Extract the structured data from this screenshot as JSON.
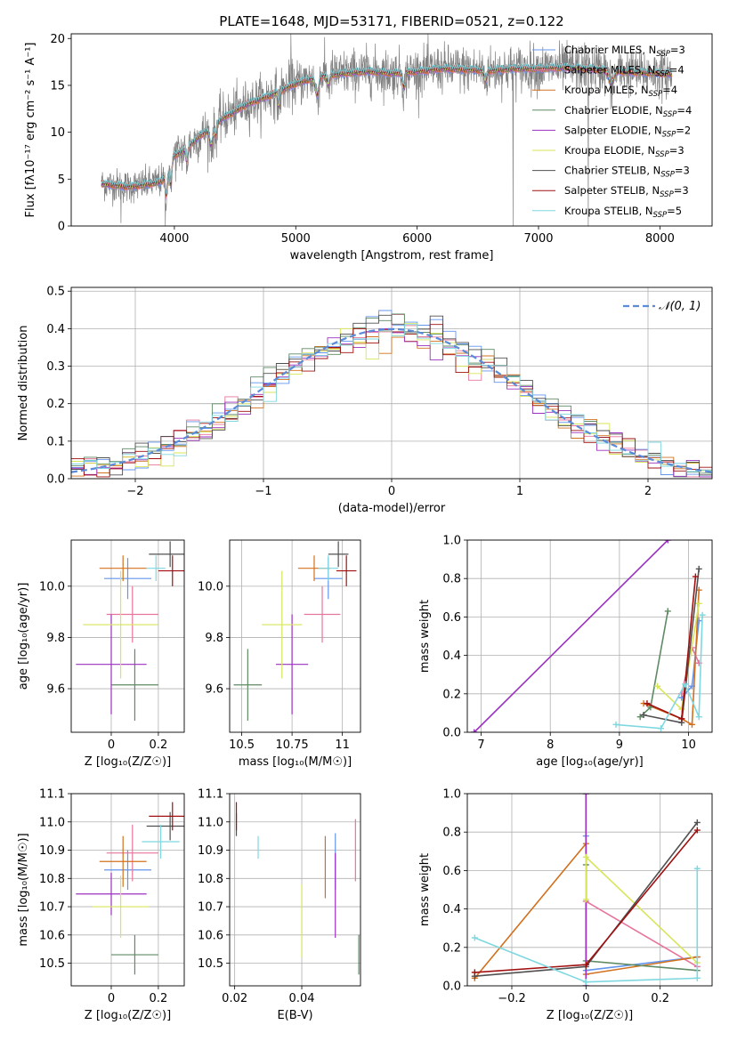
{
  "figure": {
    "title": "PLATE=1648, MJD=53171, FIBERID=0521, z=0.122"
  },
  "colors": {
    "data": "#808080",
    "models": [
      "#6495ED",
      "#E7759B",
      "#D2701E",
      "#5E8A64",
      "#9B30C0",
      "#D8E55A",
      "#505050",
      "#A01010",
      "#7FD8E0"
    ],
    "gauss": "#5B8BD8"
  },
  "chart_data": [
    {
      "id": "spectrum",
      "type": "line",
      "title": "PLATE=1648, MJD=53171, FIBERID=0521, z=0.122",
      "xlabel": "wavelength [Angstrom, rest frame]",
      "ylabel": "Flux [fλ10⁻¹⁷ erg cm⁻² s⁻¹ A⁻¹]",
      "xlim": [
        3150,
        8430
      ],
      "ylim": [
        0,
        20.5
      ],
      "xticks": [
        4000,
        5000,
        6000,
        7000,
        8000
      ],
      "yticks": [
        0,
        5,
        10,
        15,
        20
      ],
      "legend": "right",
      "continuum": {
        "x": [
          3400,
          3500,
          3600,
          3700,
          3800,
          3900,
          4000,
          4100,
          4200,
          4300,
          4400,
          4600,
          4800,
          5000,
          5200,
          5400,
          5600,
          5800,
          6000,
          6200,
          6400,
          6600,
          6800,
          7000,
          7200,
          7400,
          7600,
          7800,
          8000,
          8100
        ],
        "y": [
          4.5,
          4.4,
          4.2,
          4.3,
          4.5,
          4.8,
          7.5,
          8.3,
          9.5,
          10.5,
          11.5,
          13.0,
          14.0,
          15.2,
          16.0,
          16.3,
          16.5,
          16.3,
          16.5,
          16.8,
          16.7,
          16.6,
          16.8,
          16.8,
          16.9,
          16.8,
          16.6,
          16.4,
          16.3,
          16.2
        ]
      },
      "spikes": [
        {
          "x": 3560,
          "y": 0.3
        },
        {
          "x": 3925,
          "y": 0.0
        },
        {
          "x": 4960,
          "y": 20.5
        },
        {
          "x": 6790,
          "y": 0.0
        },
        {
          "x": 7410,
          "y": 0.0
        }
      ],
      "series": [
        {
          "name": "Chabrier MILES, N",
          "sub": "SSP",
          "suffix": "=3"
        },
        {
          "name": "Salpeter MILES, N",
          "sub": "SSP",
          "suffix": "=4"
        },
        {
          "name": "Kroupa MILES, N",
          "sub": "SSP",
          "suffix": "=4"
        },
        {
          "name": "Chabrier ELODIE, N",
          "sub": "SSP",
          "suffix": "=4"
        },
        {
          "name": "Salpeter ELODIE, N",
          "sub": "SSP",
          "suffix": "=2"
        },
        {
          "name": "Kroupa ELODIE, N",
          "sub": "SSP",
          "suffix": "=3"
        },
        {
          "name": "Chabrier STELIB, N",
          "sub": "SSP",
          "suffix": "=3"
        },
        {
          "name": "Salpeter STELIB, N",
          "sub": "SSP",
          "suffix": "=3"
        },
        {
          "name": "Kroupa STELIB, N",
          "sub": "SSP",
          "suffix": "=5"
        }
      ]
    },
    {
      "id": "residuals",
      "type": "line",
      "xlabel": "(data-model)/error",
      "ylabel": "Normed distribution",
      "xlim": [
        -2.5,
        2.5
      ],
      "ylim": [
        0,
        0.51
      ],
      "xticks": [
        -2,
        -1,
        0,
        1,
        2
      ],
      "yticks": [
        0.0,
        0.1,
        0.2,
        0.3,
        0.4,
        0.5
      ],
      "grid": true,
      "legend": "top-right",
      "gauss_label": "𝒩(0, 1)",
      "bin_width": 0.1
    },
    {
      "id": "age-vs-Z",
      "type": "scatter",
      "xlabel": "Z [log₁₀(Z/Z☉)]",
      "ylabel": "age  [log₁₀(age/yr)]",
      "xlim": [
        -0.17,
        0.31
      ],
      "ylim": [
        9.43,
        10.18
      ],
      "xticks": [
        0.0,
        0.2
      ],
      "yticks": [
        9.6,
        9.8,
        10.0
      ],
      "grid": true,
      "points": [
        {
          "x": 0.07,
          "y": 10.03,
          "xerr": 0.1,
          "yerr": 0.08
        },
        {
          "x": 0.09,
          "y": 9.89,
          "xerr": 0.11,
          "yerr": 0.11
        },
        {
          "x": 0.05,
          "y": 10.07,
          "xerr": 0.1,
          "yerr": 0.05
        },
        {
          "x": 0.1,
          "y": 9.615,
          "xerr": 0.1,
          "yerr": 0.14
        },
        {
          "x": 0.0,
          "y": 9.695,
          "xerr": 0.15,
          "yerr": 0.195
        },
        {
          "x": 0.04,
          "y": 9.85,
          "xerr": 0.16,
          "yerr": 0.21
        },
        {
          "x": 0.25,
          "y": 10.125,
          "xerr": 0.09,
          "yerr": 0.05
        },
        {
          "x": 0.26,
          "y": 10.06,
          "xerr": 0.06,
          "yerr": 0.06
        },
        {
          "x": 0.19,
          "y": 10.07,
          "xerr": 0.04,
          "yerr": 0.05
        }
      ]
    },
    {
      "id": "age-vs-mass",
      "type": "scatter",
      "xlabel": "mass [log₁₀(M/M☉)]",
      "ylabel": "",
      "xlim": [
        10.44,
        11.09
      ],
      "ylim": [
        9.43,
        10.18
      ],
      "xticks": [
        10.5,
        10.75,
        11.0
      ],
      "yticks": [
        9.6,
        9.8,
        10.0
      ],
      "grid": true,
      "points": [
        {
          "x": 10.93,
          "y": 10.03,
          "xerr": 0.07,
          "yerr": 0.08
        },
        {
          "x": 10.9,
          "y": 9.89,
          "xerr": 0.09,
          "yerr": 0.11
        },
        {
          "x": 10.86,
          "y": 10.07,
          "xerr": 0.08,
          "yerr": 0.05
        },
        {
          "x": 10.53,
          "y": 9.615,
          "xerr": 0.07,
          "yerr": 0.14
        },
        {
          "x": 10.75,
          "y": 9.695,
          "xerr": 0.08,
          "yerr": 0.195
        },
        {
          "x": 10.7,
          "y": 9.85,
          "xerr": 0.1,
          "yerr": 0.21
        },
        {
          "x": 10.98,
          "y": 10.125,
          "xerr": 0.05,
          "yerr": 0.05
        },
        {
          "x": 11.02,
          "y": 10.06,
          "xerr": 0.05,
          "yerr": 0.06
        },
        {
          "x": 10.93,
          "y": 10.07,
          "xerr": 0.05,
          "yerr": 0.05
        }
      ]
    },
    {
      "id": "weight-vs-age",
      "type": "line",
      "xlabel": "age  [log₁₀(age/yr)]",
      "ylabel": "mass weight",
      "xlim": [
        6.8,
        10.34
      ],
      "ylim": [
        0,
        1.0
      ],
      "xticks": [
        7,
        8,
        9,
        10
      ],
      "yticks": [
        0.0,
        0.2,
        0.4,
        0.6,
        0.8,
        1.0
      ],
      "grid": true,
      "series": [
        {
          "x": [
            9.9,
            10.05,
            10.15
          ],
          "y": [
            0.18,
            0.24,
            0.58
          ]
        },
        {
          "x": [
            9.9,
            10.05,
            10.15
          ],
          "y": [
            0.2,
            0.44,
            0.36
          ]
        },
        {
          "x": [
            9.35,
            9.9,
            10.05,
            10.15
          ],
          "y": [
            0.15,
            0.07,
            0.04,
            0.74
          ]
        },
        {
          "x": [
            9.3,
            9.45,
            9.7
          ],
          "y": [
            0.08,
            0.13,
            0.63
          ]
        },
        {
          "x": [
            6.9,
            9.7
          ],
          "y": [
            0.0,
            1.0
          ]
        },
        {
          "x": [
            9.55,
            9.9,
            10.15
          ],
          "y": [
            0.24,
            0.12,
            0.67
          ]
        },
        {
          "x": [
            9.35,
            9.9,
            10.15
          ],
          "y": [
            0.09,
            0.05,
            0.85
          ]
        },
        {
          "x": [
            9.4,
            9.9,
            10.1
          ],
          "y": [
            0.15,
            0.07,
            0.81
          ]
        },
        {
          "x": [
            8.95,
            9.6,
            9.95,
            10.15,
            10.2
          ],
          "y": [
            0.04,
            0.02,
            0.25,
            0.08,
            0.61
          ]
        }
      ]
    },
    {
      "id": "mass-vs-Z",
      "type": "scatter",
      "xlabel": "Z [log₁₀(Z/Z☉)]",
      "ylabel": "mass [log₁₀(M/M☉)]",
      "xlim": [
        -0.17,
        0.31
      ],
      "ylim": [
        10.42,
        11.1
      ],
      "xticks": [
        0.0,
        0.2
      ],
      "yticks": [
        10.5,
        10.6,
        10.7,
        10.8,
        10.9,
        11.0,
        11.1
      ],
      "grid": true,
      "points": [
        {
          "x": 0.07,
          "y": 10.83,
          "xerr": 0.1,
          "yerr": 0.07
        },
        {
          "x": 0.09,
          "y": 10.89,
          "xerr": 0.11,
          "yerr": 0.1
        },
        {
          "x": 0.05,
          "y": 10.86,
          "xerr": 0.1,
          "yerr": 0.09
        },
        {
          "x": 0.1,
          "y": 10.53,
          "xerr": 0.1,
          "yerr": 0.07
        },
        {
          "x": 0.0,
          "y": 10.745,
          "xerr": 0.15,
          "yerr": 0.075
        },
        {
          "x": 0.04,
          "y": 10.7,
          "xerr": 0.12,
          "yerr": 0.11
        },
        {
          "x": 0.25,
          "y": 10.985,
          "xerr": 0.1,
          "yerr": 0.05
        },
        {
          "x": 0.26,
          "y": 11.02,
          "xerr": 0.1,
          "yerr": 0.05
        },
        {
          "x": 0.21,
          "y": 10.93,
          "xerr": 0.08,
          "yerr": 0.06
        }
      ]
    },
    {
      "id": "mass-vs-ebv",
      "type": "scatter",
      "xlabel": "E(B-V)",
      "ylabel": "",
      "xlim": [
        0.0185,
        0.0575
      ],
      "ylim": [
        10.42,
        11.1
      ],
      "xticks": [
        0.02,
        0.04
      ],
      "yticks": [
        10.5,
        10.6,
        10.7,
        10.8,
        10.9,
        11.0,
        11.1
      ],
      "grid": true,
      "points": [
        {
          "x": 0.05,
          "y": 10.86,
          "yerr": 0.1
        },
        {
          "x": 0.056,
          "y": 10.9,
          "yerr": 0.11
        },
        {
          "x": 0.047,
          "y": 10.84,
          "yerr": 0.11
        },
        {
          "x": 0.057,
          "y": 10.53,
          "yerr": 0.07
        },
        {
          "x": 0.05,
          "y": 10.74,
          "yerr": 0.15
        },
        {
          "x": 0.04,
          "y": 10.65,
          "yerr": 0.13
        },
        {
          "x": 0.0205,
          "y": 10.99,
          "yerr": 0.04
        },
        {
          "x": 0.0205,
          "y": 11.02,
          "yerr": 0.05
        },
        {
          "x": 0.027,
          "y": 10.91,
          "yerr": 0.04
        }
      ]
    },
    {
      "id": "weight-vs-Z",
      "type": "line",
      "xlabel": "Z [log₁₀(Z/Z☉)]",
      "ylabel": "mass weight",
      "xlim": [
        -0.32,
        0.34
      ],
      "ylim": [
        0,
        1.0
      ],
      "xticks": [
        -0.2,
        0.0,
        0.2
      ],
      "yticks": [
        0.0,
        0.2,
        0.4,
        0.6,
        0.8,
        1.0
      ],
      "grid": true,
      "series": [
        {
          "x": [
            0.0,
            0.0,
            0.3
          ],
          "y": [
            0.78,
            0.08,
            0.15
          ]
        },
        {
          "x": [
            0.0,
            0.3
          ],
          "y": [
            0.44,
            0.1
          ]
        },
        {
          "x": [
            -0.3,
            0.0,
            0.0,
            0.3
          ],
          "y": [
            0.04,
            0.74,
            0.06,
            0.15
          ]
        },
        {
          "x": [
            0.0,
            0.0,
            0.3
          ],
          "y": [
            0.63,
            0.13,
            0.08
          ]
        },
        {
          "x": [
            0.0,
            0.0
          ],
          "y": [
            1.0,
            0.0
          ]
        },
        {
          "x": [
            0.0,
            0.0,
            0.3
          ],
          "y": [
            0.45,
            0.67,
            0.12
          ]
        },
        {
          "x": [
            -0.3,
            0.0,
            0.3
          ],
          "y": [
            0.05,
            0.1,
            0.85
          ]
        },
        {
          "x": [
            -0.3,
            0.0,
            0.3
          ],
          "y": [
            0.07,
            0.11,
            0.81
          ]
        },
        {
          "x": [
            -0.3,
            0.0,
            0.3,
            0.3
          ],
          "y": [
            0.25,
            0.02,
            0.04,
            0.61
          ]
        }
      ]
    }
  ]
}
